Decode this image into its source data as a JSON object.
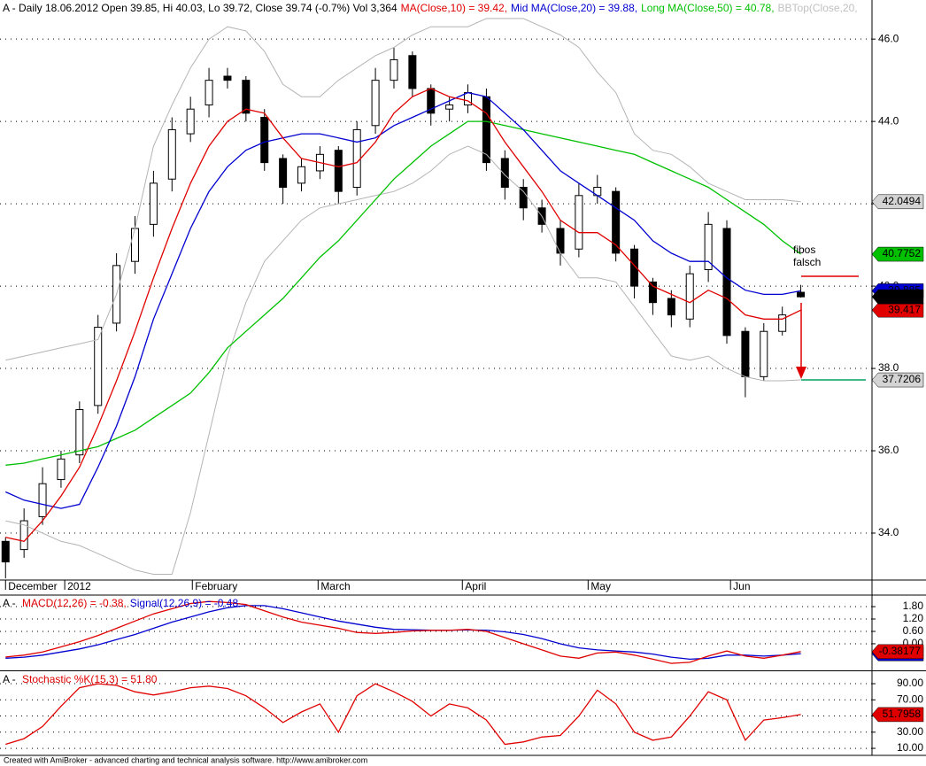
{
  "chart_data": [
    {
      "type": "candlestick",
      "title_parts": [
        {
          "text": "A - Daily 18.06.2012 Open 39.85, Hi 40.03, Lo 39.72, Close 39.74 (-0.7%) Vol 3,364",
          "color": "#000000"
        },
        {
          "text": "MA(Close,10) = 39.42,",
          "color": "#e00000"
        },
        {
          "text": "Mid MA(Close,20) = 39.88,",
          "color": "#0000d0"
        },
        {
          "text": "Long MA(Close,50) = 40.78,",
          "color": "#00c000"
        },
        {
          "text": "BBTop(Close,20,",
          "color": "#c0c0c0"
        }
      ],
      "x": [
        0,
        1,
        2,
        3,
        4,
        5,
        6,
        7,
        8,
        9,
        10,
        11,
        12,
        13,
        14,
        15,
        16,
        17,
        18,
        19,
        20,
        21,
        22,
        23,
        24,
        25,
        26,
        27,
        28,
        29,
        30,
        31,
        32,
        33,
        34,
        35,
        36,
        37,
        38,
        39,
        40,
        41,
        42,
        43
      ],
      "open": [
        33.8,
        33.6,
        34.4,
        35.3,
        35.9,
        37.1,
        39.1,
        40.6,
        41.5,
        42.6,
        43.7,
        44.4,
        45.1,
        45.0,
        44.1,
        43.1,
        42.5,
        42.8,
        43.3,
        42.4,
        43.9,
        45.0,
        45.6,
        44.8,
        44.3,
        44.4,
        44.6,
        43.1,
        42.4,
        41.9,
        41.4,
        40.9,
        42.2,
        42.3,
        40.9,
        40.1,
        39.7,
        39.2,
        40.4,
        41.4,
        38.9,
        37.8,
        38.9,
        39.85
      ],
      "high": [
        33.9,
        34.6,
        35.6,
        36.0,
        37.2,
        39.3,
        40.8,
        41.7,
        42.8,
        44.1,
        44.6,
        45.3,
        45.3,
        45.1,
        44.3,
        43.2,
        43.1,
        43.4,
        43.4,
        44.0,
        45.3,
        45.8,
        45.7,
        44.9,
        44.6,
        44.9,
        44.8,
        43.3,
        42.6,
        42.1,
        41.6,
        42.5,
        42.7,
        42.4,
        41.0,
        40.2,
        39.9,
        40.5,
        41.8,
        41.6,
        39.0,
        39.1,
        39.5,
        40.03
      ],
      "low": [
        32.9,
        33.4,
        34.2,
        35.1,
        35.7,
        36.9,
        38.9,
        40.3,
        41.2,
        42.3,
        43.5,
        44.1,
        44.8,
        44.0,
        42.8,
        42.0,
        42.3,
        42.6,
        42.0,
        42.2,
        43.7,
        44.8,
        44.6,
        43.9,
        44.0,
        44.2,
        42.8,
        42.1,
        41.6,
        41.3,
        40.5,
        40.7,
        42.0,
        40.6,
        39.7,
        39.3,
        39.0,
        39.0,
        40.1,
        38.6,
        37.3,
        37.7,
        38.8,
        39.72
      ],
      "close": [
        33.3,
        34.3,
        35.2,
        35.8,
        37.0,
        39.0,
        40.5,
        41.4,
        42.5,
        43.8,
        44.3,
        45.0,
        45.0,
        44.2,
        43.0,
        42.4,
        42.9,
        43.2,
        42.3,
        43.8,
        45.0,
        45.5,
        44.8,
        44.2,
        44.4,
        44.7,
        43.0,
        42.4,
        41.9,
        41.5,
        40.8,
        42.2,
        42.4,
        40.8,
        40.0,
        39.6,
        39.3,
        40.3,
        41.5,
        38.8,
        37.8,
        38.9,
        39.3,
        39.74
      ],
      "close_label": "39.74",
      "up_color": "#ffffff",
      "down_color": "#000000",
      "series": [
        {
          "color": "#b4b4b4",
          "last_label": "42.0494",
          "label_bg": "#d4d4d4",
          "label_fg": "#000000",
          "values": [
            38.2,
            38.3,
            38.4,
            38.5,
            38.6,
            38.7,
            39.8,
            41.4,
            43.4,
            44.4,
            45.3,
            46.0,
            46.3,
            46.2,
            45.7,
            44.9,
            44.6,
            44.6,
            45.0,
            45.3,
            45.6,
            45.8,
            46.1,
            46.3,
            46.3,
            46.3,
            46.5,
            46.5,
            46.5,
            46.3,
            46.1,
            45.8,
            45.2,
            44.7,
            43.7,
            43.3,
            43.2,
            42.9,
            42.5,
            42.3,
            42.1,
            42.1,
            42.1,
            42.0494
          ]
        },
        {
          "color": "#b4b4b4",
          "last_label": "37.7206",
          "label_bg": "#d4d4d4",
          "label_fg": "#000000",
          "values": [
            34.3,
            34.2,
            34.0,
            33.8,
            33.7,
            33.5,
            33.3,
            33.1,
            33.0,
            33.0,
            34.5,
            36.4,
            38.3,
            39.6,
            40.6,
            41.1,
            41.6,
            41.9,
            42.0,
            42.1,
            42.2,
            42.3,
            42.5,
            42.8,
            43.2,
            43.4,
            43.2,
            42.7,
            42.3,
            41.7,
            40.8,
            40.2,
            40.2,
            40.1,
            39.5,
            38.9,
            38.3,
            38.2,
            38.3,
            38.0,
            37.8,
            37.7,
            37.7,
            37.7206
          ]
        },
        {
          "color": "#00c000",
          "last_label": "40.7752",
          "label_bg": "#00c000",
          "label_fg": "#000000",
          "values": [
            35.65,
            35.7,
            35.8,
            35.9,
            36.0,
            36.1,
            36.3,
            36.5,
            36.8,
            37.1,
            37.4,
            37.9,
            38.5,
            38.9,
            39.3,
            39.7,
            40.2,
            40.7,
            41.1,
            41.6,
            42.1,
            42.6,
            43.0,
            43.4,
            43.7,
            44.0,
            44.0,
            43.9,
            43.8,
            43.7,
            43.6,
            43.5,
            43.4,
            43.3,
            43.2,
            43.0,
            42.8,
            42.6,
            42.4,
            42.1,
            41.8,
            41.5,
            41.1,
            40.7752
          ]
        },
        {
          "color": "#0000d0",
          "last_label": "39.885",
          "label_bg": "#0000d0",
          "label_fg": "#ffffff",
          "values": [
            35.0,
            34.8,
            34.7,
            34.6,
            34.7,
            35.6,
            36.6,
            37.8,
            39.2,
            40.3,
            41.4,
            42.3,
            42.9,
            43.3,
            43.5,
            43.6,
            43.7,
            43.7,
            43.6,
            43.5,
            43.6,
            43.9,
            44.1,
            44.3,
            44.5,
            44.7,
            44.6,
            44.2,
            43.8,
            43.3,
            42.8,
            42.5,
            42.2,
            41.9,
            41.6,
            41.1,
            40.8,
            40.6,
            40.6,
            40.2,
            39.9,
            39.8,
            39.8,
            39.885
          ]
        },
        {
          "color": "#e00000",
          "last_label": "39.417",
          "label_bg": "#e00000",
          "label_fg": "#000000",
          "values": [
            33.9,
            33.8,
            34.3,
            34.9,
            35.6,
            36.6,
            37.7,
            38.9,
            40.2,
            41.4,
            42.5,
            43.4,
            44.0,
            44.3,
            44.2,
            43.6,
            43.1,
            43.0,
            42.9,
            43.0,
            43.5,
            44.2,
            44.6,
            44.8,
            44.6,
            44.5,
            44.2,
            43.5,
            42.9,
            42.3,
            41.6,
            41.3,
            41.3,
            41.0,
            40.5,
            40.0,
            39.8,
            39.6,
            39.9,
            39.7,
            39.3,
            39.2,
            39.2,
            39.417
          ]
        }
      ],
      "annotation": [
        "fibos",
        "falsch"
      ],
      "xlim": [
        -0.3,
        46.85
      ],
      "xticks": [
        {
          "value": 0,
          "label": "December"
        },
        {
          "value": 3.2,
          "label": "2012"
        },
        {
          "value": 10.1,
          "label": "February"
        },
        {
          "value": 16.9,
          "label": "March"
        },
        {
          "value": 24.7,
          "label": "April"
        },
        {
          "value": 31.5,
          "label": "May"
        },
        {
          "value": 39.2,
          "label": "Jun"
        }
      ],
      "ylim": [
        32.86,
        46.95
      ],
      "yticks": [
        {
          "value": 34,
          "label": "34.0"
        },
        {
          "value": 36,
          "label": "36.0"
        },
        {
          "value": 38,
          "label": "38.0"
        },
        {
          "value": 40,
          "label": "40.0"
        },
        {
          "value": 42,
          "label": "42.0"
        },
        {
          "value": 44,
          "label": "44.0"
        },
        {
          "value": 46,
          "label": "46.0"
        }
      ],
      "grid": true
    },
    {
      "type": "line",
      "title_parts": [
        {
          "text": "A - ",
          "color": "#000000"
        },
        {
          "text": "MACD(12,26) = -0.38,",
          "color": "#e00000"
        },
        {
          "text": "Signal(12,26,9) = -0.48",
          "color": "#0000d0"
        }
      ],
      "series": [
        {
          "color": "#0000d0",
          "last_label": "-0.48422",
          "label_bg": "#0000d0",
          "label_fg": "#ffffff",
          "values": [
            -0.7,
            -0.65,
            -0.55,
            -0.4,
            -0.25,
            -0.05,
            0.2,
            0.45,
            0.75,
            1.05,
            1.3,
            1.55,
            1.75,
            1.85,
            1.85,
            1.7,
            1.5,
            1.3,
            1.1,
            0.95,
            0.8,
            0.7,
            0.68,
            0.66,
            0.66,
            0.67,
            0.66,
            0.58,
            0.45,
            0.25,
            0.0,
            -0.2,
            -0.3,
            -0.35,
            -0.4,
            -0.5,
            -0.65,
            -0.75,
            -0.7,
            -0.55,
            -0.55,
            -0.6,
            -0.55,
            -0.48422
          ]
        },
        {
          "color": "#e00000",
          "last_label": "-0.38177",
          "label_bg": "#e00000",
          "label_fg": "#000000",
          "values": [
            -0.64,
            -0.55,
            -0.4,
            -0.15,
            0.1,
            0.4,
            0.75,
            1.1,
            1.45,
            1.7,
            1.95,
            2.05,
            2.0,
            1.9,
            1.6,
            1.3,
            1.05,
            0.9,
            0.75,
            0.55,
            0.5,
            0.55,
            0.62,
            0.65,
            0.65,
            0.7,
            0.6,
            0.3,
            0.0,
            -0.3,
            -0.6,
            -0.7,
            -0.45,
            -0.4,
            -0.55,
            -0.75,
            -0.95,
            -0.9,
            -0.6,
            -0.35,
            -0.6,
            -0.7,
            -0.55,
            -0.38177
          ]
        }
      ],
      "ylim": [
        -1.29,
        2.36
      ],
      "yticks": [
        {
          "value": 0,
          "label": "0.00"
        },
        {
          "value": 0.6,
          "label": "0.60"
        },
        {
          "value": 1.2,
          "label": "1.20"
        },
        {
          "value": 1.8,
          "label": "1.80"
        }
      ],
      "grid": true
    },
    {
      "type": "line",
      "title_parts": [
        {
          "text": "A - ",
          "color": "#000000"
        },
        {
          "text": "Stochastic %K(15,3) = 51.80",
          "color": "#e00000"
        }
      ],
      "series": [
        {
          "color": "#e00000",
          "last_label": "51.7958",
          "label_bg": "#e00000",
          "label_fg": "#000000",
          "values": [
            15,
            22,
            37,
            62,
            85,
            90,
            88,
            80,
            76,
            80,
            85,
            87,
            84,
            75,
            60,
            42,
            55,
            65,
            30,
            75,
            90,
            80,
            68,
            50,
            65,
            60,
            45,
            15,
            18,
            24,
            26,
            50,
            82,
            65,
            30,
            20,
            24,
            50,
            80,
            70,
            20,
            45,
            48,
            51.7958
          ]
        }
      ],
      "ylim": [
        2.4,
        105.4
      ],
      "yticks": [
        {
          "value": 10,
          "label": "10.00"
        },
        {
          "value": 30,
          "label": "30.00"
        },
        {
          "value": 50,
          "label": "50.00"
        },
        {
          "value": 70,
          "label": "70.00"
        },
        {
          "value": 90,
          "label": "90.00"
        }
      ],
      "grid": true
    }
  ],
  "footer": "Created with AmiBroker - advanced charting and technical analysis software. http://www.amibroker.com"
}
